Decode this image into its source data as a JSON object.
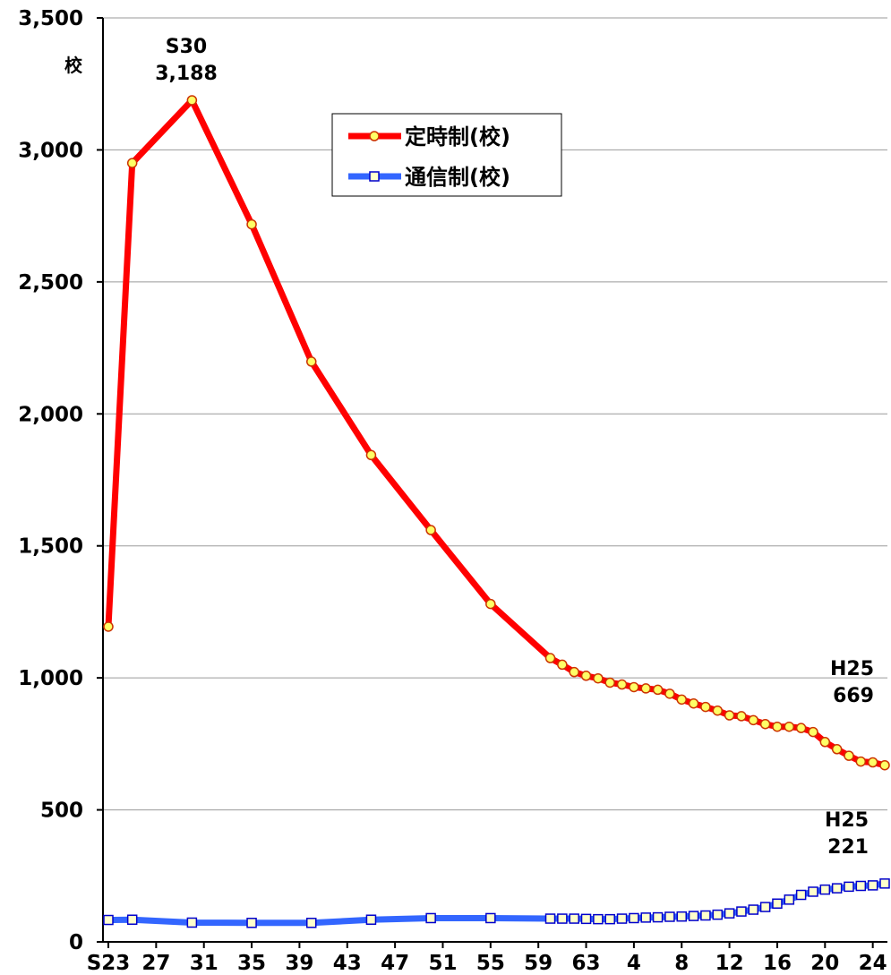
{
  "chart_data": {
    "type": "line",
    "y_unit": "校",
    "ylim": [
      0,
      3500
    ],
    "y_ticks": [
      "0",
      "500",
      "1,000",
      "1,500",
      "2,000",
      "2,500",
      "3,000",
      "3,500"
    ],
    "x_range": [
      1948,
      2013
    ],
    "x_ticks": [
      {
        "year": 1948,
        "label": "S23"
      },
      {
        "year": 1952,
        "label": "27"
      },
      {
        "year": 1956,
        "label": "31"
      },
      {
        "year": 1960,
        "label": "35"
      },
      {
        "year": 1964,
        "label": "39"
      },
      {
        "year": 1968,
        "label": "43"
      },
      {
        "year": 1972,
        "label": "47"
      },
      {
        "year": 1976,
        "label": "51"
      },
      {
        "year": 1980,
        "label": "55"
      },
      {
        "year": 1984,
        "label": "59"
      },
      {
        "year": 1988,
        "label": "63"
      },
      {
        "year": 1992,
        "label": "4"
      },
      {
        "year": 1996,
        "label": "8"
      },
      {
        "year": 2000,
        "label": "12"
      },
      {
        "year": 2004,
        "label": "16"
      },
      {
        "year": 2008,
        "label": "20"
      },
      {
        "year": 2012,
        "label": "24"
      }
    ],
    "grid": true,
    "legend_position": "top-center",
    "series": [
      {
        "name": "定時制(校)",
        "color": "#ff0000",
        "marker": "circle",
        "x": [
          1948,
          1950,
          1955,
          1960,
          1965,
          1970,
          1975,
          1980,
          1985,
          1986,
          1987,
          1988,
          1989,
          1990,
          1991,
          1992,
          1993,
          1994,
          1995,
          1996,
          1997,
          1998,
          1999,
          2000,
          2001,
          2002,
          2003,
          2004,
          2005,
          2006,
          2007,
          2008,
          2009,
          2010,
          2011,
          2012,
          2013
        ],
        "values": [
          1194,
          2950,
          3188,
          2718,
          2198,
          1844,
          1560,
          1280,
          1075,
          1050,
          1022,
          1008,
          998,
          982,
          975,
          965,
          960,
          955,
          940,
          918,
          903,
          890,
          876,
          858,
          855,
          840,
          825,
          815,
          815,
          810,
          795,
          757,
          730,
          705,
          683,
          680,
          669
        ]
      },
      {
        "name": "通信制(校)",
        "color": "#3366ff",
        "marker": "square",
        "x": [
          1948,
          1950,
          1955,
          1960,
          1965,
          1970,
          1975,
          1980,
          1985,
          1986,
          1987,
          1988,
          1989,
          1990,
          1991,
          1992,
          1993,
          1994,
          1995,
          1996,
          1997,
          1998,
          1999,
          2000,
          2001,
          2002,
          2003,
          2004,
          2005,
          2006,
          2007,
          2008,
          2009,
          2010,
          2011,
          2012,
          2013
        ],
        "values": [
          83,
          84,
          73,
          72,
          72,
          84,
          90,
          90,
          88,
          88,
          88,
          87,
          86,
          86,
          88,
          90,
          92,
          93,
          95,
          96,
          98,
          100,
          103,
          108,
          115,
          122,
          132,
          145,
          160,
          178,
          190,
          198,
          203,
          209,
          212,
          214,
          221
        ]
      }
    ],
    "annotations": [
      {
        "lines": [
          "S30",
          "3,188"
        ],
        "x": 1955,
        "y": 3188
      },
      {
        "lines": [
          "H25",
          "669"
        ],
        "x": 2013,
        "y": 669
      },
      {
        "lines": [
          "H25",
          "221"
        ],
        "x": 2013,
        "y": 221
      }
    ]
  }
}
